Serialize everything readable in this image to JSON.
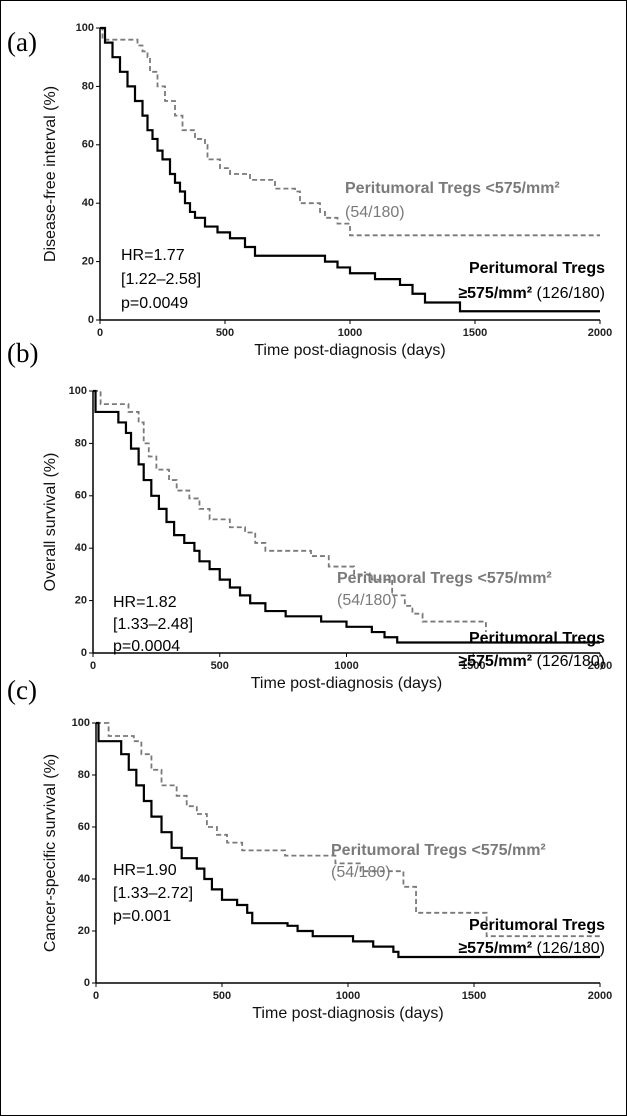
{
  "chart_data": [
    {
      "type": "step",
      "panel_label": "(a)",
      "ylabel": "Disease-free interval (%)",
      "xlabel": "Time post-diagnosis (days)",
      "xlim": [
        0,
        2000
      ],
      "ylim": [
        0,
        100
      ],
      "xticks": [
        0,
        500,
        1000,
        1500,
        2000
      ],
      "yticks": [
        0,
        20,
        40,
        60,
        80,
        100
      ],
      "stats": [
        "HR=1.77",
        "[1.22–2.58]",
        "p=0.0049"
      ],
      "series": [
        {
          "name_lines": [
            "Peritumoral Tregs <575/mm²"
          ],
          "count": "(54/180)",
          "color": "#7a7a7a",
          "dash": true,
          "x": [
            0,
            10,
            150,
            170,
            190,
            200,
            230,
            260,
            300,
            330,
            380,
            420,
            430,
            480,
            520,
            600,
            700,
            780,
            800,
            880,
            900,
            950,
            1000,
            2000
          ],
          "values": [
            100,
            96,
            94,
            92,
            90,
            85,
            80,
            75,
            70,
            65,
            62,
            60,
            55,
            52,
            50,
            48,
            45,
            44,
            40,
            37,
            35,
            33,
            29,
            29
          ]
        },
        {
          "name_lines": [
            "Peritumoral Tregs",
            "≥575/mm²"
          ],
          "count": "(126/180)",
          "color": "#000000",
          "dash": false,
          "x": [
            0,
            20,
            50,
            80,
            110,
            140,
            170,
            190,
            210,
            230,
            250,
            280,
            300,
            320,
            340,
            360,
            380,
            420,
            470,
            520,
            580,
            620,
            900,
            950,
            1000,
            1100,
            1200,
            1250,
            1300,
            1440,
            2000
          ],
          "values": [
            100,
            95,
            90,
            85,
            80,
            75,
            70,
            65,
            62,
            58,
            55,
            50,
            47,
            44,
            40,
            37,
            35,
            32,
            30,
            28,
            25,
            22,
            20,
            18,
            16,
            14,
            12,
            9,
            6,
            3,
            3
          ]
        }
      ]
    },
    {
      "type": "step",
      "panel_label": "(b)",
      "ylabel": "Overall survival (%)",
      "xlabel": "Time post-diagnosis (days)",
      "xlim": [
        0,
        2000
      ],
      "ylim": [
        0,
        100
      ],
      "xticks": [
        0,
        500,
        1000,
        1500,
        2000
      ],
      "yticks": [
        0,
        20,
        40,
        60,
        80,
        100
      ],
      "stats": [
        "HR=1.82",
        "[1.33–2.48]",
        "p=0.0004"
      ],
      "series": [
        {
          "name_lines": [
            "Peritumoral Tregs <575/mm²"
          ],
          "count": "(54/180)",
          "color": "#7a7a7a",
          "dash": true,
          "x": [
            0,
            30,
            140,
            180,
            200,
            220,
            250,
            300,
            330,
            380,
            420,
            460,
            540,
            600,
            640,
            680,
            860,
            930,
            1030,
            1100,
            1180,
            1230,
            1260,
            1300,
            1550
          ],
          "values": [
            100,
            95,
            92,
            88,
            80,
            75,
            70,
            66,
            62,
            59,
            55,
            51,
            48,
            46,
            42,
            39,
            37,
            33,
            30,
            28,
            22,
            18,
            15,
            12,
            8
          ]
        },
        {
          "name_lines": [
            "Peritumoral Tregs",
            "≥575/mm²"
          ],
          "count": "(126/180)",
          "color": "#000000",
          "dash": false,
          "x": [
            0,
            10,
            100,
            130,
            150,
            180,
            200,
            230,
            260,
            290,
            320,
            360,
            400,
            420,
            460,
            500,
            540,
            580,
            620,
            680,
            760,
            900,
            1000,
            1100,
            1150,
            1200,
            2000
          ],
          "values": [
            100,
            92,
            88,
            84,
            78,
            72,
            66,
            60,
            55,
            50,
            45,
            42,
            39,
            35,
            32,
            28,
            25,
            22,
            19,
            16,
            14,
            12,
            10,
            8,
            6,
            4,
            4
          ]
        }
      ]
    },
    {
      "type": "step",
      "panel_label": "(c)",
      "ylabel": "Cancer-specific survival (%)",
      "xlabel": "Time post-diagnosis (days)",
      "xlim": [
        0,
        2000
      ],
      "ylim": [
        0,
        100
      ],
      "xticks": [
        0,
        500,
        1000,
        1500,
        2000
      ],
      "yticks": [
        0,
        20,
        40,
        60,
        80,
        100
      ],
      "stats": [
        "HR=1.90",
        "[1.33–2.72]",
        "p=0.001"
      ],
      "series": [
        {
          "name_lines": [
            "Peritumoral Tregs <575/mm²"
          ],
          "count": "(54/180)",
          "color": "#7a7a7a",
          "dash": true,
          "x": [
            0,
            50,
            150,
            180,
            220,
            260,
            320,
            360,
            400,
            440,
            480,
            520,
            580,
            750,
            950,
            1050,
            1220,
            1270,
            1550,
            2000
          ],
          "values": [
            100,
            95,
            93,
            88,
            82,
            76,
            72,
            68,
            65,
            60,
            57,
            54,
            51,
            49,
            46,
            43,
            37,
            27,
            18,
            18
          ]
        },
        {
          "name_lines": [
            "Peritumoral Tregs",
            "≥575/mm²"
          ],
          "count": "(126/180)",
          "color": "#000000",
          "dash": false,
          "x": [
            0,
            10,
            100,
            130,
            160,
            190,
            220,
            260,
            300,
            340,
            400,
            430,
            460,
            500,
            560,
            600,
            620,
            760,
            800,
            860,
            1020,
            1100,
            1180,
            1200,
            2000
          ],
          "values": [
            100,
            93,
            88,
            82,
            76,
            70,
            64,
            58,
            52,
            48,
            44,
            40,
            36,
            32,
            30,
            27,
            23,
            22,
            20,
            18,
            16,
            14,
            12,
            10,
            10
          ]
        }
      ]
    }
  ]
}
